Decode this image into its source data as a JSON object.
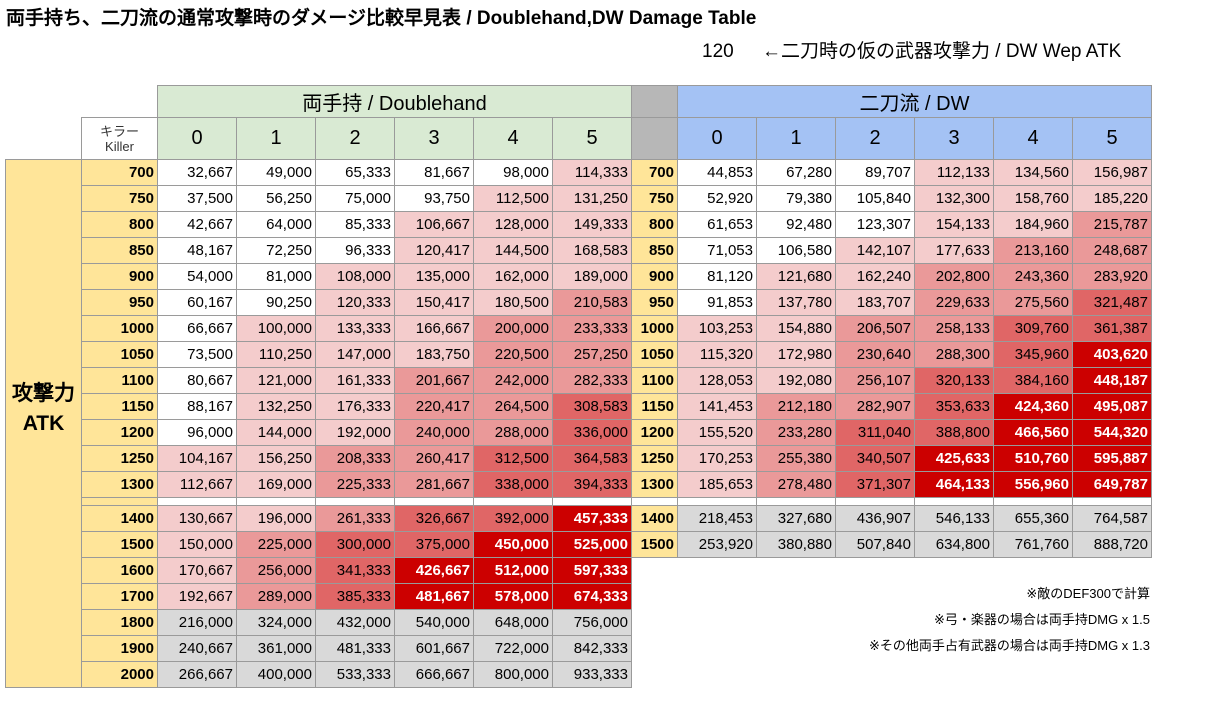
{
  "title": "両手持ち、二刀流の通常攻撃時のダメージ比較早見表 / Doublehand,DW Damage Table",
  "dw_wep_atk": "120",
  "dw_wep_atk_label": "←二刀時の仮の武器攻撃力 / DW Wep ATK",
  "header": {
    "doublehand": "両手持 / Doublehand",
    "dw": "二刀流 / DW",
    "killer_jp": "キラー",
    "killer_en": "Killer",
    "killer_levels": [
      "0",
      "1",
      "2",
      "3",
      "4",
      "5"
    ],
    "atk_jp": "攻撃力",
    "atk_en": "ATK"
  },
  "colors": {
    "shade_0": "#ffffff",
    "shade_1": "#f4cccc",
    "shade_2": "#ea9999",
    "shade_3": "#e06666",
    "shade_4": "#cc0000",
    "gray": "#d9d9d9",
    "atk_column": "#ffe599",
    "doublehand_header": "#d9ead3",
    "dw_header": "#a4c2f4"
  },
  "rows": [
    {
      "atk": "700",
      "dh": [
        "32,667",
        "49,000",
        "65,333",
        "81,667",
        "98,000",
        "114,333"
      ],
      "dh_shade": [
        0,
        0,
        0,
        0,
        0,
        1
      ],
      "dw_atk": "700",
      "dw": [
        "44,853",
        "67,280",
        "89,707",
        "112,133",
        "134,560",
        "156,987"
      ],
      "dw_shade": [
        0,
        0,
        0,
        1,
        1,
        1
      ]
    },
    {
      "atk": "750",
      "dh": [
        "37,500",
        "56,250",
        "75,000",
        "93,750",
        "112,500",
        "131,250"
      ],
      "dh_shade": [
        0,
        0,
        0,
        0,
        1,
        1
      ],
      "dw_atk": "750",
      "dw": [
        "52,920",
        "79,380",
        "105,840",
        "132,300",
        "158,760",
        "185,220"
      ],
      "dw_shade": [
        0,
        0,
        0,
        1,
        1,
        1
      ]
    },
    {
      "atk": "800",
      "dh": [
        "42,667",
        "64,000",
        "85,333",
        "106,667",
        "128,000",
        "149,333"
      ],
      "dh_shade": [
        0,
        0,
        0,
        1,
        1,
        1
      ],
      "dw_atk": "800",
      "dw": [
        "61,653",
        "92,480",
        "123,307",
        "154,133",
        "184,960",
        "215,787"
      ],
      "dw_shade": [
        0,
        0,
        0,
        1,
        1,
        2
      ]
    },
    {
      "atk": "850",
      "dh": [
        "48,167",
        "72,250",
        "96,333",
        "120,417",
        "144,500",
        "168,583"
      ],
      "dh_shade": [
        0,
        0,
        0,
        1,
        1,
        1
      ],
      "dw_atk": "850",
      "dw": [
        "71,053",
        "106,580",
        "142,107",
        "177,633",
        "213,160",
        "248,687"
      ],
      "dw_shade": [
        0,
        0,
        1,
        1,
        2,
        2
      ]
    },
    {
      "atk": "900",
      "dh": [
        "54,000",
        "81,000",
        "108,000",
        "135,000",
        "162,000",
        "189,000"
      ],
      "dh_shade": [
        0,
        0,
        1,
        1,
        1,
        1
      ],
      "dw_atk": "900",
      "dw": [
        "81,120",
        "121,680",
        "162,240",
        "202,800",
        "243,360",
        "283,920"
      ],
      "dw_shade": [
        0,
        1,
        1,
        2,
        2,
        2
      ]
    },
    {
      "atk": "950",
      "dh": [
        "60,167",
        "90,250",
        "120,333",
        "150,417",
        "180,500",
        "210,583"
      ],
      "dh_shade": [
        0,
        0,
        1,
        1,
        1,
        2
      ],
      "dw_atk": "950",
      "dw": [
        "91,853",
        "137,780",
        "183,707",
        "229,633",
        "275,560",
        "321,487"
      ],
      "dw_shade": [
        0,
        1,
        1,
        2,
        2,
        3
      ]
    },
    {
      "atk": "1000",
      "dh": [
        "66,667",
        "100,000",
        "133,333",
        "166,667",
        "200,000",
        "233,333"
      ],
      "dh_shade": [
        0,
        1,
        1,
        1,
        2,
        2
      ],
      "dw_atk": "1000",
      "dw": [
        "103,253",
        "154,880",
        "206,507",
        "258,133",
        "309,760",
        "361,387"
      ],
      "dw_shade": [
        1,
        1,
        2,
        2,
        3,
        3
      ]
    },
    {
      "atk": "1050",
      "dh": [
        "73,500",
        "110,250",
        "147,000",
        "183,750",
        "220,500",
        "257,250"
      ],
      "dh_shade": [
        0,
        1,
        1,
        1,
        2,
        2
      ],
      "dw_atk": "1050",
      "dw": [
        "115,320",
        "172,980",
        "230,640",
        "288,300",
        "345,960",
        "403,620"
      ],
      "dw_shade": [
        1,
        1,
        2,
        2,
        3,
        4
      ]
    },
    {
      "atk": "1100",
      "dh": [
        "80,667",
        "121,000",
        "161,333",
        "201,667",
        "242,000",
        "282,333"
      ],
      "dh_shade": [
        0,
        1,
        1,
        2,
        2,
        2
      ],
      "dw_atk": "1100",
      "dw": [
        "128,053",
        "192,080",
        "256,107",
        "320,133",
        "384,160",
        "448,187"
      ],
      "dw_shade": [
        1,
        1,
        2,
        3,
        3,
        4
      ]
    },
    {
      "atk": "1150",
      "dh": [
        "88,167",
        "132,250",
        "176,333",
        "220,417",
        "264,500",
        "308,583"
      ],
      "dh_shade": [
        0,
        1,
        1,
        2,
        2,
        3
      ],
      "dw_atk": "1150",
      "dw": [
        "141,453",
        "212,180",
        "282,907",
        "353,633",
        "424,360",
        "495,087"
      ],
      "dw_shade": [
        1,
        2,
        2,
        3,
        4,
        4
      ]
    },
    {
      "atk": "1200",
      "dh": [
        "96,000",
        "144,000",
        "192,000",
        "240,000",
        "288,000",
        "336,000"
      ],
      "dh_shade": [
        0,
        1,
        1,
        2,
        2,
        3
      ],
      "dw_atk": "1200",
      "dw": [
        "155,520",
        "233,280",
        "311,040",
        "388,800",
        "466,560",
        "544,320"
      ],
      "dw_shade": [
        1,
        2,
        3,
        3,
        4,
        4
      ]
    },
    {
      "atk": "1250",
      "dh": [
        "104,167",
        "156,250",
        "208,333",
        "260,417",
        "312,500",
        "364,583"
      ],
      "dh_shade": [
        1,
        1,
        2,
        2,
        3,
        3
      ],
      "dw_atk": "1250",
      "dw": [
        "170,253",
        "255,380",
        "340,507",
        "425,633",
        "510,760",
        "595,887"
      ],
      "dw_shade": [
        1,
        2,
        3,
        4,
        4,
        4
      ]
    },
    {
      "atk": "1300",
      "dh": [
        "112,667",
        "169,000",
        "225,333",
        "281,667",
        "338,000",
        "394,333"
      ],
      "dh_shade": [
        1,
        1,
        2,
        2,
        3,
        3
      ],
      "dw_atk": "1300",
      "dw": [
        "185,653",
        "278,480",
        "371,307",
        "464,133",
        "556,960",
        "649,787"
      ],
      "dw_shade": [
        1,
        2,
        3,
        4,
        4,
        4
      ]
    },
    {
      "separator": true
    },
    {
      "atk": "1400",
      "dh": [
        "130,667",
        "196,000",
        "261,333",
        "326,667",
        "392,000",
        "457,333"
      ],
      "dh_shade": [
        1,
        1,
        2,
        3,
        3,
        4
      ],
      "dw_atk": "1400",
      "dw": [
        "218,453",
        "327,680",
        "436,907",
        "546,133",
        "655,360",
        "764,587"
      ],
      "dw_shade": [
        5,
        5,
        5,
        5,
        5,
        5
      ]
    },
    {
      "atk": "1500",
      "dh": [
        "150,000",
        "225,000",
        "300,000",
        "375,000",
        "450,000",
        "525,000"
      ],
      "dh_shade": [
        1,
        2,
        3,
        3,
        4,
        4
      ],
      "dw_atk": "1500",
      "dw": [
        "253,920",
        "380,880",
        "507,840",
        "634,800",
        "761,760",
        "888,720"
      ],
      "dw_shade": [
        5,
        5,
        5,
        5,
        5,
        5
      ]
    },
    {
      "atk": "1600",
      "dh": [
        "170,667",
        "256,000",
        "341,333",
        "426,667",
        "512,000",
        "597,333"
      ],
      "dh_shade": [
        1,
        2,
        3,
        4,
        4,
        4
      ]
    },
    {
      "atk": "1700",
      "dh": [
        "192,667",
        "289,000",
        "385,333",
        "481,667",
        "578,000",
        "674,333"
      ],
      "dh_shade": [
        1,
        2,
        3,
        4,
        4,
        4
      ]
    },
    {
      "atk": "1800",
      "dh": [
        "216,000",
        "324,000",
        "432,000",
        "540,000",
        "648,000",
        "756,000"
      ],
      "dh_shade": [
        5,
        5,
        5,
        5,
        5,
        5
      ]
    },
    {
      "atk": "1900",
      "dh": [
        "240,667",
        "361,000",
        "481,333",
        "601,667",
        "722,000",
        "842,333"
      ],
      "dh_shade": [
        5,
        5,
        5,
        5,
        5,
        5
      ]
    },
    {
      "atk": "2000",
      "dh": [
        "266,667",
        "400,000",
        "533,333",
        "666,667",
        "800,000",
        "933,333"
      ],
      "dh_shade": [
        5,
        5,
        5,
        5,
        5,
        5
      ]
    }
  ],
  "notes": [
    "※敵のDEF300で計算",
    "※弓・楽器の場合は両手持DMG x 1.5",
    "※その他両手占有武器の場合は両手持DMG x 1.3"
  ]
}
